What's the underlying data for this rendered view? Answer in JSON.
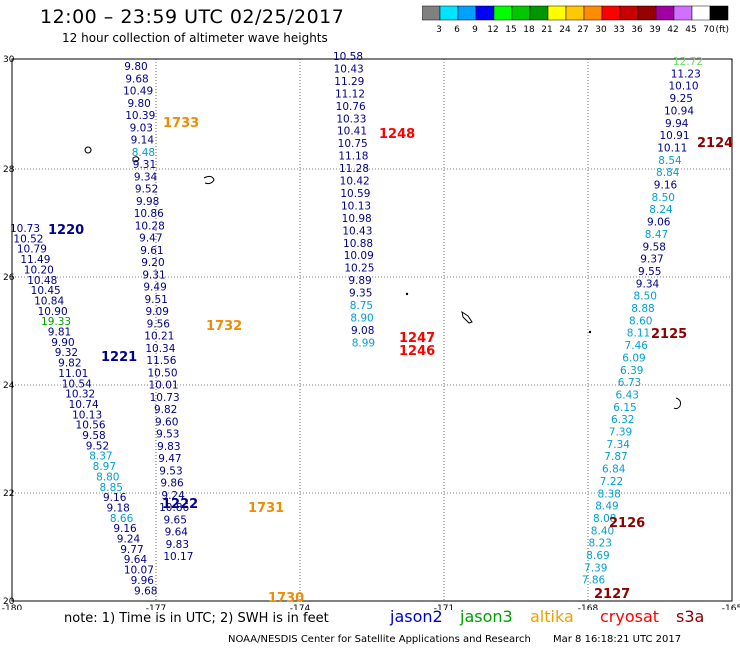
{
  "header": {
    "title": "12:00  –  23:59  UTC  02/25/2017",
    "subtitle": "12 hour collection of altimeter wave heights"
  },
  "colorbar": {
    "unit_label": "(ft)",
    "bins": [
      {
        "label": "3",
        "color": "#808080"
      },
      {
        "label": "6",
        "color": "#00e5ff"
      },
      {
        "label": "9",
        "color": "#00a0ff"
      },
      {
        "label": "12",
        "color": "#0000ff"
      },
      {
        "label": "15",
        "color": "#00ff00"
      },
      {
        "label": "18",
        "color": "#00c800"
      },
      {
        "label": "21",
        "color": "#009600"
      },
      {
        "label": "24",
        "color": "#ffff00"
      },
      {
        "label": "27",
        "color": "#ffc800"
      },
      {
        "label": "30",
        "color": "#ff8c00"
      },
      {
        "label": "33",
        "color": "#ff0000"
      },
      {
        "label": "36",
        "color": "#c80000"
      },
      {
        "label": "39",
        "color": "#960000"
      },
      {
        "label": "42",
        "color": "#a000a0"
      },
      {
        "label": "45",
        "color": "#d070ff"
      },
      {
        "label": "70",
        "color": "#ffffff"
      },
      {
        "label": "",
        "color": "#000000"
      }
    ]
  },
  "map": {
    "lon_ticks": [
      "-180",
      "-177",
      "-174",
      "-171",
      "-168",
      "-165"
    ],
    "lat_ticks": [
      "20",
      "22",
      "24",
      "26",
      "28",
      "30"
    ],
    "colors": {
      "navy": "#00008b",
      "cyan": "#00a0d0",
      "green": "#00a000",
      "lightgreen": "#66dd66",
      "orange": "#f08c00",
      "red": "#ff0000",
      "darkred": "#8b0000"
    },
    "tracks": [
      {
        "values": [
          [
            "9.80",
            "navy"
          ],
          [
            "9.68",
            "navy"
          ],
          [
            "10.49",
            "navy"
          ],
          [
            "9.80",
            "navy"
          ],
          [
            "10.39",
            "navy"
          ],
          [
            "9.03",
            "navy"
          ],
          [
            "9.14",
            "navy"
          ],
          [
            "8.48",
            "cyan"
          ],
          [
            "9.31",
            "navy"
          ],
          [
            "9.34",
            "navy"
          ],
          [
            "9.52",
            "navy"
          ],
          [
            "9.98",
            "navy"
          ],
          [
            "10.86",
            "navy"
          ],
          [
            "10.28",
            "navy"
          ],
          [
            "9.47",
            "navy"
          ],
          [
            "9.61",
            "navy"
          ],
          [
            "9.20",
            "navy"
          ],
          [
            "9.31",
            "navy"
          ],
          [
            "9.49",
            "navy"
          ],
          [
            "9.51",
            "navy"
          ],
          [
            "9.09",
            "navy"
          ],
          [
            "9.56",
            "navy"
          ],
          [
            "10.21",
            "navy"
          ],
          [
            "10.34",
            "navy"
          ],
          [
            "11.56",
            "navy"
          ],
          [
            "10.50",
            "navy"
          ],
          [
            "10.01",
            "navy"
          ],
          [
            "10.73",
            "navy"
          ],
          [
            "9.82",
            "navy"
          ],
          [
            "9.60",
            "navy"
          ],
          [
            "9.53",
            "navy"
          ],
          [
            "9.83",
            "navy"
          ],
          [
            "9.47",
            "navy"
          ],
          [
            "9.53",
            "navy"
          ],
          [
            "9.86",
            "navy"
          ],
          [
            "9.24",
            "navy"
          ],
          [
            "10.86",
            "navy"
          ],
          [
            "9.65",
            "navy"
          ],
          [
            "9.64",
            "navy"
          ],
          [
            "9.83",
            "navy"
          ],
          [
            "10.17",
            "navy"
          ]
        ]
      },
      {
        "values": [
          [
            "10.73",
            "navy"
          ],
          [
            "10.52",
            "navy"
          ],
          [
            "10.79",
            "navy"
          ],
          [
            "11.49",
            "navy"
          ],
          [
            "10.20",
            "navy"
          ],
          [
            "10.48",
            "navy"
          ],
          [
            "10.45",
            "navy"
          ],
          [
            "10.84",
            "navy"
          ],
          [
            "10.90",
            "navy"
          ],
          [
            "19.33",
            "green"
          ],
          [
            "9.81",
            "navy"
          ],
          [
            "9.90",
            "navy"
          ],
          [
            "9.32",
            "navy"
          ],
          [
            "9.82",
            "navy"
          ],
          [
            "11.01",
            "navy"
          ],
          [
            "10.54",
            "navy"
          ],
          [
            "10.32",
            "navy"
          ],
          [
            "10.74",
            "navy"
          ],
          [
            "10.13",
            "navy"
          ],
          [
            "10.56",
            "navy"
          ],
          [
            "9.58",
            "navy"
          ],
          [
            "9.52",
            "navy"
          ],
          [
            "8.37",
            "cyan"
          ],
          [
            "8.97",
            "cyan"
          ],
          [
            "8.80",
            "cyan"
          ],
          [
            "8.85",
            "cyan"
          ],
          [
            "9.16",
            "navy"
          ],
          [
            "9.18",
            "navy"
          ],
          [
            "8.66",
            "cyan"
          ],
          [
            "9.16",
            "navy"
          ],
          [
            "9.24",
            "navy"
          ],
          [
            "9.77",
            "navy"
          ],
          [
            "9.64",
            "navy"
          ],
          [
            "10.07",
            "navy"
          ],
          [
            "9.96",
            "navy"
          ],
          [
            "9.68",
            "navy"
          ]
        ]
      },
      {
        "values": [
          [
            "10.58",
            "navy"
          ],
          [
            "10.43",
            "navy"
          ],
          [
            "11.29",
            "navy"
          ],
          [
            "11.12",
            "navy"
          ],
          [
            "10.76",
            "navy"
          ],
          [
            "10.33",
            "navy"
          ],
          [
            "10.41",
            "navy"
          ],
          [
            "10.75",
            "navy"
          ],
          [
            "11.18",
            "navy"
          ],
          [
            "11.28",
            "navy"
          ],
          [
            "10.42",
            "navy"
          ],
          [
            "10.59",
            "navy"
          ],
          [
            "10.13",
            "navy"
          ],
          [
            "10.98",
            "navy"
          ],
          [
            "10.43",
            "navy"
          ],
          [
            "10.88",
            "navy"
          ],
          [
            "10.09",
            "navy"
          ],
          [
            "10.25",
            "navy"
          ],
          [
            "9.89",
            "navy"
          ],
          [
            "9.35",
            "navy"
          ],
          [
            "8.75",
            "cyan"
          ],
          [
            "8.90",
            "cyan"
          ],
          [
            "9.08",
            "navy"
          ],
          [
            "8.99",
            "cyan"
          ]
        ]
      },
      {
        "values": [
          [
            "12.72",
            "lightgreen"
          ],
          [
            "11.23",
            "navy"
          ],
          [
            "10.10",
            "navy"
          ],
          [
            "9.25",
            "navy"
          ],
          [
            "10.94",
            "navy"
          ],
          [
            "9.94",
            "navy"
          ],
          [
            "10.91",
            "navy"
          ],
          [
            "10.11",
            "navy"
          ],
          [
            "8.54",
            "cyan"
          ],
          [
            "8.84",
            "cyan"
          ],
          [
            "9.16",
            "navy"
          ],
          [
            "8.50",
            "cyan"
          ],
          [
            "8.24",
            "cyan"
          ],
          [
            "9.06",
            "navy"
          ],
          [
            "8.47",
            "cyan"
          ],
          [
            "9.58",
            "navy"
          ],
          [
            "9.37",
            "navy"
          ],
          [
            "9.55",
            "navy"
          ],
          [
            "9.34",
            "navy"
          ],
          [
            "8.50",
            "cyan"
          ],
          [
            "8.88",
            "cyan"
          ],
          [
            "8.60",
            "cyan"
          ],
          [
            "8.11",
            "cyan"
          ],
          [
            "7.46",
            "cyan"
          ],
          [
            "6.09",
            "cyan"
          ],
          [
            "6.39",
            "cyan"
          ],
          [
            "6.73",
            "cyan"
          ],
          [
            "6.43",
            "cyan"
          ],
          [
            "6.15",
            "cyan"
          ],
          [
            "6.32",
            "cyan"
          ],
          [
            "7.39",
            "cyan"
          ],
          [
            "7.34",
            "cyan"
          ],
          [
            "7.87",
            "cyan"
          ],
          [
            "6.84",
            "cyan"
          ],
          [
            "7.22",
            "cyan"
          ],
          [
            "8.38",
            "cyan"
          ],
          [
            "8.49",
            "cyan"
          ],
          [
            "8.08",
            "cyan"
          ],
          [
            "8.40",
            "cyan"
          ],
          [
            "8.23",
            "cyan"
          ],
          [
            "8.69",
            "cyan"
          ],
          [
            "7.39",
            "cyan"
          ],
          [
            "7.86",
            "cyan"
          ]
        ]
      }
    ],
    "pass_times": [
      {
        "label": "1733",
        "color": "orange"
      },
      {
        "label": "1220",
        "color": "navy"
      },
      {
        "label": "1732",
        "color": "orange"
      },
      {
        "label": "1221",
        "color": "navy"
      },
      {
        "label": "1222",
        "color": "navy"
      },
      {
        "label": "1731",
        "color": "orange"
      },
      {
        "label": "1730",
        "color": "orange"
      },
      {
        "label": "1248",
        "color": "red"
      },
      {
        "label": "1247",
        "color": "red"
      },
      {
        "label": "1246",
        "color": "red"
      },
      {
        "label": "2124",
        "color": "darkred"
      },
      {
        "label": "2125",
        "color": "darkred"
      },
      {
        "label": "2126",
        "color": "darkred"
      },
      {
        "label": "2127",
        "color": "darkred"
      }
    ]
  },
  "note": "note:  1) Time is in UTC;  2) SWH is in feet",
  "legend": [
    {
      "label": "jason2",
      "color": "#0000cd"
    },
    {
      "label": "jason3",
      "color": "#00a000"
    },
    {
      "label": "altika",
      "color": "#f0a000"
    },
    {
      "label": "cryosat",
      "color": "#ff0000"
    },
    {
      "label": "s3a",
      "color": "#8b0000"
    }
  ],
  "footer": {
    "credit": "NOAA/NESDIS Center for Satellite Applications and Research",
    "timestamp": "Mar  8 16:18:21 UTC 2017"
  }
}
